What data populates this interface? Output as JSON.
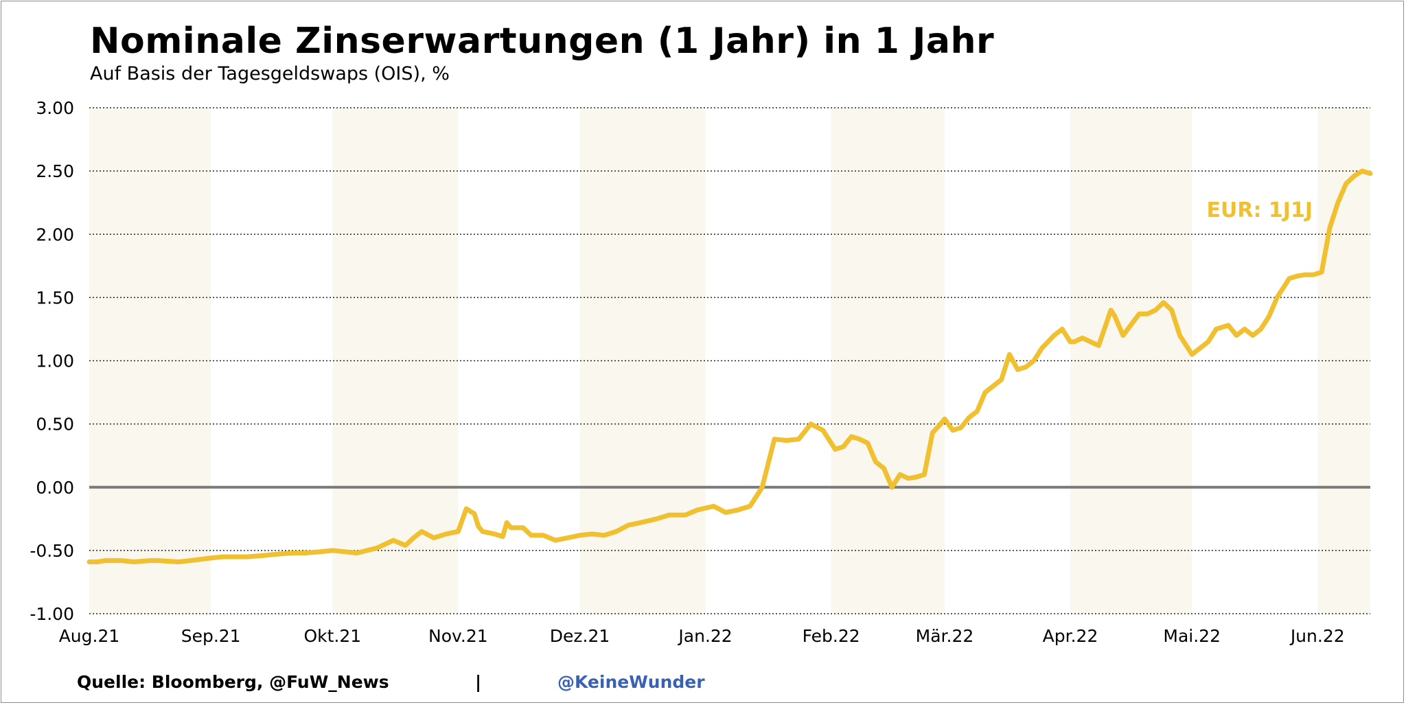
{
  "title": "Nominale Zinserwartungen (1 Jahr) in 1 Jahr",
  "subtitle": "Auf Basis der Tagesgeldswaps (OIS), %",
  "footer": {
    "source": "Quelle: Bloomberg, @FuW_News",
    "separator": "|",
    "handle": "@KeineWunder"
  },
  "colors": {
    "line": "#f0c030",
    "band": "#faf7ef",
    "zero_line": "#7a7a7a",
    "grid": "#222222",
    "handle": "#3a62b4"
  },
  "chart_data": {
    "type": "line",
    "ylim": [
      -1.0,
      3.0
    ],
    "yticks": [
      "3.00",
      "2.50",
      "2.00",
      "1.50",
      "1.00",
      "0.50",
      "0.00",
      "-0.50",
      "-1.00"
    ],
    "xticks": [
      "Aug.21",
      "Sep.21",
      "Okt.21",
      "Nov.21",
      "Dez.21",
      "Jan.22",
      "Feb.22",
      "Mär.22",
      "Apr.22",
      "Mai.22",
      "Jun.22"
    ],
    "xlim": [
      "2021-08-02",
      "2022-06-14"
    ],
    "month_starts": [
      "2021-08-02",
      "2021-09-01",
      "2021-10-01",
      "2021-11-01",
      "2021-12-01",
      "2022-01-01",
      "2022-02-01",
      "2022-03-01",
      "2022-04-01",
      "2022-05-01",
      "2022-06-01"
    ],
    "shaded_months": [
      "Aug.21",
      "Okt.21",
      "Dez.21",
      "Feb.22",
      "Apr.22",
      "Jun.22"
    ],
    "grid": "horizontal dotted",
    "series": [
      {
        "name": "EUR: 1J1J",
        "x": [
          "2021-08-02",
          "2021-08-04",
          "2021-08-06",
          "2021-08-10",
          "2021-08-13",
          "2021-08-17",
          "2021-08-19",
          "2021-08-24",
          "2021-08-27",
          "2021-09-01",
          "2021-09-04",
          "2021-09-07",
          "2021-09-10",
          "2021-09-14",
          "2021-09-17",
          "2021-09-21",
          "2021-09-24",
          "2021-09-28",
          "2021-10-01",
          "2021-10-04",
          "2021-10-07",
          "2021-10-12",
          "2021-10-14",
          "2021-10-16",
          "2021-10-19",
          "2021-10-21",
          "2021-10-23",
          "2021-10-26",
          "2021-10-29",
          "2021-11-01",
          "2021-11-03",
          "2021-11-05",
          "2021-11-06",
          "2021-11-07",
          "2021-11-10",
          "2021-11-12",
          "2021-11-13",
          "2021-11-14",
          "2021-11-17",
          "2021-11-19",
          "2021-11-22",
          "2021-11-25",
          "2021-11-28",
          "2021-12-01",
          "2021-12-04",
          "2021-12-07",
          "2021-12-10",
          "2021-12-13",
          "2021-12-16",
          "2021-12-20",
          "2021-12-23",
          "2021-12-27",
          "2021-12-30",
          "2022-01-03",
          "2022-01-06",
          "2022-01-09",
          "2022-01-12",
          "2022-01-15",
          "2022-01-18",
          "2022-01-21",
          "2022-01-24",
          "2022-01-27",
          "2022-01-30",
          "2022-02-01",
          "2022-02-02",
          "2022-02-04",
          "2022-02-06",
          "2022-02-08",
          "2022-02-10",
          "2022-02-12",
          "2022-02-14",
          "2022-02-16",
          "2022-02-18",
          "2022-02-20",
          "2022-02-22",
          "2022-02-24",
          "2022-02-26",
          "2022-02-28",
          "2022-03-01",
          "2022-03-03",
          "2022-03-05",
          "2022-03-07",
          "2022-03-09",
          "2022-03-11",
          "2022-03-13",
          "2022-03-15",
          "2022-03-17",
          "2022-03-19",
          "2022-03-21",
          "2022-03-23",
          "2022-03-25",
          "2022-03-28",
          "2022-03-30",
          "2022-04-01",
          "2022-04-02",
          "2022-04-04",
          "2022-04-06",
          "2022-04-08",
          "2022-04-11",
          "2022-04-12",
          "2022-04-14",
          "2022-04-18",
          "2022-04-20",
          "2022-04-22",
          "2022-04-24",
          "2022-04-26",
          "2022-04-28",
          "2022-05-01",
          "2022-05-03",
          "2022-05-05",
          "2022-05-07",
          "2022-05-10",
          "2022-05-12",
          "2022-05-14",
          "2022-05-16",
          "2022-05-18",
          "2022-05-20",
          "2022-05-22",
          "2022-05-25",
          "2022-05-27",
          "2022-05-29",
          "2022-05-31",
          "2022-06-02",
          "2022-06-04",
          "2022-06-06",
          "2022-06-08",
          "2022-06-10",
          "2022-06-12",
          "2022-06-14"
        ],
        "y": [
          -0.59,
          -0.59,
          -0.58,
          -0.58,
          -0.59,
          -0.58,
          -0.58,
          -0.59,
          -0.58,
          -0.56,
          -0.55,
          -0.55,
          -0.55,
          -0.54,
          -0.53,
          -0.52,
          -0.52,
          -0.51,
          -0.5,
          -0.51,
          -0.52,
          -0.48,
          -0.45,
          -0.42,
          -0.46,
          -0.4,
          -0.35,
          -0.4,
          -0.37,
          -0.35,
          -0.17,
          -0.21,
          -0.31,
          -0.35,
          -0.37,
          -0.39,
          -0.28,
          -0.32,
          -0.32,
          -0.38,
          -0.38,
          -0.42,
          -0.4,
          -0.38,
          -0.37,
          -0.38,
          -0.35,
          -0.3,
          -0.28,
          -0.25,
          -0.22,
          -0.22,
          -0.18,
          -0.15,
          -0.2,
          -0.18,
          -0.15,
          0.0,
          0.38,
          0.37,
          0.38,
          0.5,
          0.45,
          0.35,
          0.3,
          0.32,
          0.4,
          0.38,
          0.35,
          0.2,
          0.15,
          0.0,
          0.1,
          0.07,
          0.08,
          0.1,
          0.43,
          0.5,
          0.54,
          0.45,
          0.47,
          0.55,
          0.6,
          0.75,
          0.8,
          0.85,
          1.05,
          0.93,
          0.95,
          1.0,
          1.1,
          1.2,
          1.25,
          1.15,
          1.15,
          1.18,
          1.15,
          1.12,
          1.4,
          1.35,
          1.2,
          1.37,
          1.37,
          1.4,
          1.46,
          1.4,
          1.2,
          1.05,
          1.1,
          1.15,
          1.25,
          1.28,
          1.2,
          1.25,
          1.2,
          1.25,
          1.35,
          1.5,
          1.65,
          1.67,
          1.68,
          1.68,
          1.7,
          2.05,
          2.25,
          2.4,
          2.46,
          2.5,
          2.48
        ],
        "label": "EUR: 1J1J"
      }
    ]
  }
}
